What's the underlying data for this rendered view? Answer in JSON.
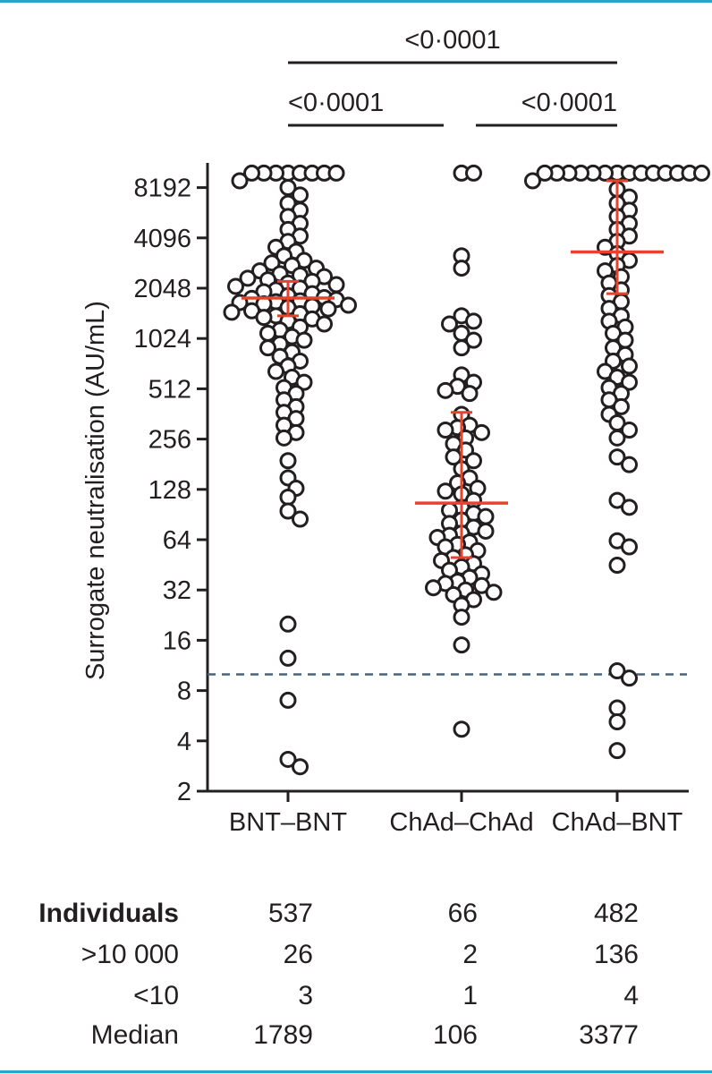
{
  "chart_data": {
    "type": "scatter",
    "ylabel": "Surrogate neutralisation (AU/mL)",
    "yscale": "log2",
    "ylim": [
      2,
      12000
    ],
    "yticks": [
      "2",
      "4",
      "8",
      "16",
      "32",
      "64",
      "128",
      "256",
      "512",
      "1024",
      "2048",
      "4096",
      "8192"
    ],
    "categories": [
      "BNT–BNT",
      "ChAd–ChAd",
      "ChAd–BNT"
    ],
    "threshold": 10,
    "point_color": "#231f20",
    "median_color": "#e8422c",
    "threshold_color": "#4a6474",
    "series": [
      {
        "category": "BNT–BNT",
        "median": 1789,
        "iqr": [
          1400,
          2250
        ],
        "points": [
          10000,
          10000,
          10000,
          10000,
          10000,
          10000,
          10000,
          10000,
          9000,
          8200,
          7400,
          6600,
          6000,
          5500,
          5000,
          4600,
          4200,
          3900,
          3600,
          3400,
          3200,
          3000,
          2900,
          2800,
          2700,
          2600,
          2500,
          2450,
          2400,
          2350,
          2300,
          2250,
          2200,
          2150,
          2100,
          2050,
          2000,
          1950,
          1900,
          1850,
          1800,
          1780,
          1750,
          1720,
          1700,
          1680,
          1650,
          1620,
          1600,
          1570,
          1540,
          1500,
          1470,
          1440,
          1400,
          1370,
          1340,
          1300,
          1250,
          1200,
          1150,
          1100,
          1050,
          1000,
          950,
          900,
          850,
          800,
          750,
          700,
          650,
          600,
          560,
          520,
          480,
          440,
          400,
          370,
          340,
          310,
          280,
          260,
          190,
          150,
          130,
          115,
          95,
          85,
          20,
          12.5,
          7,
          3.1,
          2.8
        ]
      },
      {
        "category": "ChAd–ChAd",
        "median": 106,
        "iqr": [
          50,
          370
        ],
        "points": [
          10000,
          10000,
          3200,
          2700,
          1400,
          1300,
          1250,
          1100,
          1000,
          900,
          620,
          560,
          530,
          500,
          480,
          360,
          310,
          300,
          290,
          280,
          260,
          240,
          220,
          200,
          190,
          170,
          150,
          140,
          130,
          125,
          120,
          110,
          100,
          96,
          92,
          88,
          84,
          80,
          76,
          72,
          70,
          68,
          66,
          62,
          60,
          58,
          55,
          52,
          50,
          48,
          46,
          44,
          42,
          40,
          38,
          36,
          35,
          34,
          33,
          32,
          31,
          30,
          28,
          26,
          22,
          15,
          4.7
        ]
      },
      {
        "category": "ChAd–BNT",
        "median": 3377,
        "iqr": [
          1900,
          9000
        ],
        "points": [
          10000,
          10000,
          10000,
          10000,
          10000,
          10000,
          10000,
          10000,
          10000,
          10000,
          10000,
          10000,
          10000,
          10000,
          9000,
          8000,
          7200,
          6600,
          6000,
          5500,
          5000,
          4600,
          4200,
          3900,
          3600,
          3300,
          3000,
          2800,
          2600,
          2400,
          2200,
          2000,
          1850,
          1700,
          1550,
          1400,
          1300,
          1200,
          1100,
          1000,
          900,
          820,
          750,
          700,
          650,
          600,
          560,
          520,
          480,
          440,
          400,
          360,
          320,
          290,
          260,
          200,
          180,
          110,
          100,
          63,
          58,
          45,
          10.5,
          9.5,
          6.3,
          5.2,
          3.5
        ]
      }
    ],
    "comparisons": [
      {
        "groups": [
          "BNT–BNT",
          "ChAd–BNT"
        ],
        "p": "<0·0001"
      },
      {
        "groups": [
          "BNT–BNT",
          "ChAd–ChAd"
        ],
        "p": "<0·0001"
      },
      {
        "groups": [
          "ChAd–ChAd",
          "ChAd–BNT"
        ],
        "p": "<0·0001"
      }
    ]
  },
  "table": {
    "rows": [
      {
        "label": "Individuals",
        "values": [
          "537",
          "66",
          "482"
        ],
        "bold": true
      },
      {
        "label": ">10 000",
        "values": [
          "26",
          "2",
          "136"
        ],
        "bold": false
      },
      {
        "label": "<10",
        "values": [
          "3",
          "1",
          "4"
        ],
        "bold": false
      },
      {
        "label": "Median",
        "values": [
          "1789",
          "106",
          "3377"
        ],
        "bold": false
      }
    ]
  }
}
